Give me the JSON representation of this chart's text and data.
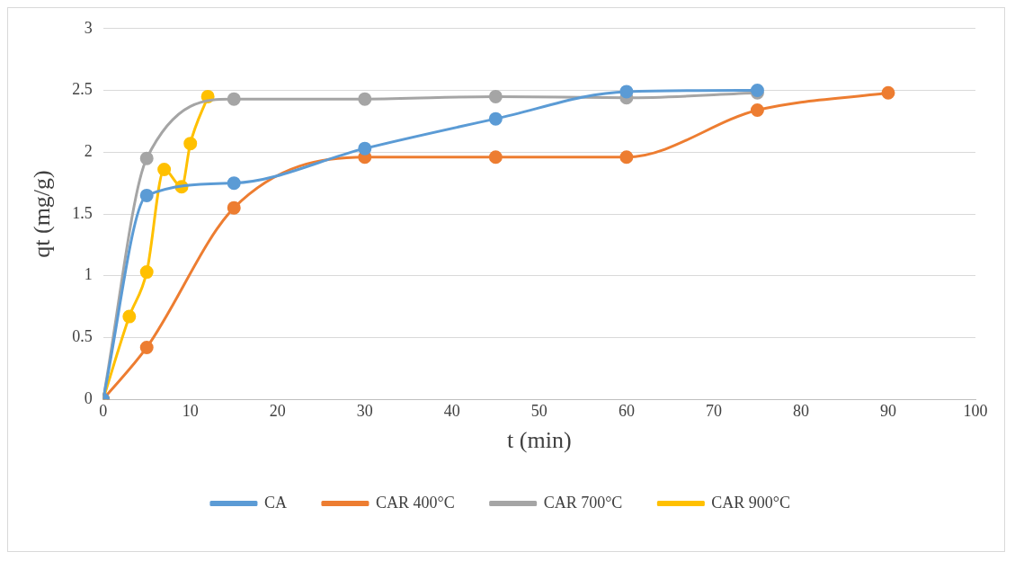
{
  "chart_data": {
    "type": "line",
    "xlabel": "t (min)",
    "ylabel": "qt (mg/g)",
    "xlim": [
      0,
      100
    ],
    "xticks": [
      0,
      10,
      20,
      30,
      40,
      50,
      60,
      70,
      80,
      90,
      100
    ],
    "ylim": [
      0,
      3
    ],
    "yticks": [
      0,
      0.5,
      1,
      1.5,
      2,
      2.5,
      3
    ],
    "grid": "y",
    "legend": "bottom",
    "marker": "circle",
    "line_style": "solid",
    "series": [
      {
        "name": "CA",
        "color": "#5b9bd5",
        "x": [
          0,
          5,
          15,
          30,
          45,
          60,
          75
        ],
        "values": [
          0,
          1.65,
          1.75,
          2.03,
          2.27,
          2.49,
          2.5
        ]
      },
      {
        "name": "CAR 400°C",
        "color": "#ed7d31",
        "x": [
          0,
          5,
          15,
          30,
          45,
          60,
          75,
          90
        ],
        "values": [
          0,
          0.42,
          1.55,
          1.96,
          1.96,
          1.96,
          2.34,
          2.48
        ]
      },
      {
        "name": "CAR 700°C",
        "color": "#a5a5a5",
        "x": [
          0,
          5,
          15,
          30,
          45,
          60,
          75
        ],
        "values": [
          0,
          1.95,
          2.43,
          2.43,
          2.45,
          2.44,
          2.48
        ]
      },
      {
        "name": "CAR 900°C",
        "color": "#ffc000",
        "x": [
          0,
          3,
          5,
          7,
          9,
          10,
          12
        ],
        "values": [
          0,
          0.67,
          1.03,
          1.86,
          1.72,
          2.07,
          2.45
        ]
      }
    ]
  }
}
